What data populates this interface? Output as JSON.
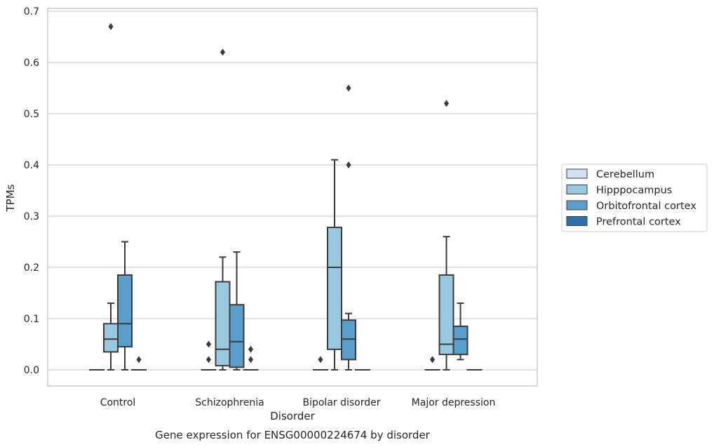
{
  "chart_data": {
    "type": "box",
    "title": "",
    "caption": "Gene expression for ENSG00000224674 by disorder",
    "xlabel": "Disorder",
    "ylabel": "TPMs",
    "ylim": [
      -0.032,
      0.705
    ],
    "yticks": [
      0.0,
      0.1,
      0.2,
      0.3,
      0.4,
      0.5,
      0.6,
      0.7
    ],
    "ytick_labels": [
      "0.0",
      "0.1",
      "0.2",
      "0.3",
      "0.4",
      "0.5",
      "0.6",
      "0.7"
    ],
    "grid": "horizontal",
    "legend_position": "right",
    "categories": [
      "Control",
      "Schizophrenia",
      "Bipolar disorder",
      "Major depression"
    ],
    "series": [
      {
        "name": "Cerebellum",
        "color": "#d1e2f2",
        "boxes": [
          {
            "q1": 0,
            "median": 0,
            "q3": 0,
            "whisker_low": 0,
            "whisker_high": 0,
            "outliers": []
          },
          {
            "q1": 0,
            "median": 0,
            "q3": 0,
            "whisker_low": 0,
            "whisker_high": 0,
            "outliers": [
              0.02,
              0.05
            ]
          },
          {
            "q1": 0,
            "median": 0,
            "q3": 0,
            "whisker_low": 0,
            "whisker_high": 0,
            "outliers": [
              0.02
            ]
          },
          {
            "q1": 0,
            "median": 0,
            "q3": 0,
            "whisker_low": 0,
            "whisker_high": 0,
            "outliers": [
              0.02
            ]
          }
        ]
      },
      {
        "name": "Hipppocampus",
        "color": "#9ac8e0",
        "boxes": [
          {
            "q1": 0.035,
            "median": 0.06,
            "q3": 0.09,
            "whisker_low": 0,
            "whisker_high": 0.13,
            "outliers": [
              0.67
            ]
          },
          {
            "q1": 0.008,
            "median": 0.04,
            "q3": 0.172,
            "whisker_low": 0,
            "whisker_high": 0.22,
            "outliers": [
              0.62
            ]
          },
          {
            "q1": 0.04,
            "median": 0.2,
            "q3": 0.278,
            "whisker_low": 0,
            "whisker_high": 0.41,
            "outliers": []
          },
          {
            "q1": 0.03,
            "median": 0.05,
            "q3": 0.185,
            "whisker_low": 0,
            "whisker_high": 0.26,
            "outliers": [
              0.52
            ]
          }
        ]
      },
      {
        "name": "Orbitofrontal cortex",
        "color": "#5a9fcc",
        "boxes": [
          {
            "q1": 0.045,
            "median": 0.09,
            "q3": 0.185,
            "whisker_low": 0,
            "whisker_high": 0.25,
            "outliers": []
          },
          {
            "q1": 0.005,
            "median": 0.055,
            "q3": 0.127,
            "whisker_low": 0,
            "whisker_high": 0.23,
            "outliers": []
          },
          {
            "q1": 0.02,
            "median": 0.06,
            "q3": 0.097,
            "whisker_low": 0,
            "whisker_high": 0.11,
            "outliers": [
              0.4,
              0.55
            ]
          },
          {
            "q1": 0.03,
            "median": 0.06,
            "q3": 0.085,
            "whisker_low": 0.02,
            "whisker_high": 0.13,
            "outliers": []
          }
        ]
      },
      {
        "name": "Prefrontal cortex",
        "color": "#2c6fad",
        "boxes": [
          {
            "q1": 0,
            "median": 0,
            "q3": 0,
            "whisker_low": 0,
            "whisker_high": 0,
            "outliers": [
              0.02
            ]
          },
          {
            "q1": 0,
            "median": 0,
            "q3": 0,
            "whisker_low": 0,
            "whisker_high": 0,
            "outliers": [
              0.02,
              0.04
            ]
          },
          {
            "q1": 0,
            "median": 0,
            "q3": 0,
            "whisker_low": 0,
            "whisker_high": 0,
            "outliers": []
          },
          {
            "q1": 0,
            "median": 0,
            "q3": 0,
            "whisker_low": 0,
            "whisker_high": 0,
            "outliers": []
          }
        ]
      }
    ]
  }
}
